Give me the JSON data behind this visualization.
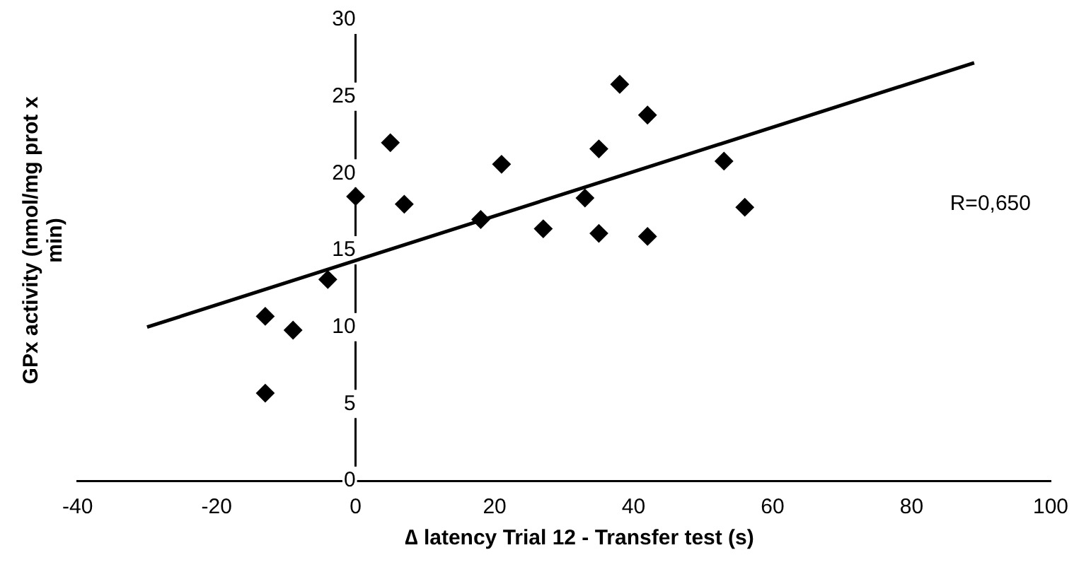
{
  "chart_data": {
    "type": "scatter",
    "xlabel": "∆ latency  Trial 12 - Transfer test (s)",
    "ylabel": "GPx activity  (nmol/mg prot x min)",
    "xlim": [
      -40,
      100
    ],
    "xticks": [
      -40,
      -20,
      0,
      20,
      40,
      60,
      80,
      100
    ],
    "ylim": [
      0,
      30
    ],
    "yticks": [
      0,
      5,
      10,
      15,
      20,
      25,
      30
    ],
    "grid": false,
    "legend": false,
    "marker": "diamond",
    "annotations": [
      "R=0,650"
    ],
    "series": [
      {
        "color": "#000000",
        "x": [
          -13,
          -13,
          -9,
          -4,
          0,
          5,
          7,
          18,
          21,
          27,
          33,
          35,
          35,
          38,
          42,
          42,
          53,
          56
        ],
        "values": [
          10.7,
          5.7,
          9.8,
          13.1,
          18.5,
          22,
          18,
          17,
          20.6,
          16.4,
          18.4,
          21.6,
          16.1,
          25.8,
          23.8,
          15.9,
          20.8,
          17.8
        ]
      },
      {
        "type": "line",
        "color": "#000000",
        "marker": "none",
        "x": [
          -30,
          89
        ],
        "values": [
          10,
          27.2
        ]
      }
    ]
  }
}
